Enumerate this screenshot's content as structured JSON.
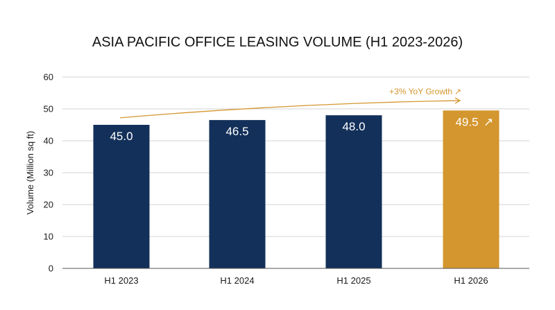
{
  "chart_data": {
    "type": "bar",
    "title": "ASIA PACIFIC OFFICE LEASING VOLUME (H1 2023-2026)",
    "xlabel": "",
    "ylabel": "Volume (Million sq ft)",
    "ylim": [
      0,
      60
    ],
    "yticks": [
      0,
      10,
      20,
      30,
      40,
      50,
      60
    ],
    "grid": true,
    "categories": [
      "H1 2023",
      "H1 2024",
      "H1 2025",
      "H1 2026"
    ],
    "values": [
      45.0,
      46.5,
      48.0,
      49.5
    ],
    "value_labels": [
      "45.0",
      "46.5",
      "48.0",
      "49.5"
    ],
    "highlight_index": 3,
    "highlight_marker": "↗",
    "colors": {
      "bar": "#13305a",
      "highlight": "#d4962e",
      "annotation": "#d4962e",
      "grid": "#d3d3d3",
      "axis": "#555555"
    },
    "annotation": {
      "text": "+3% YoY Growth",
      "arrow_icon": "↗",
      "trend_from": 47.2,
      "trend_to": 52.6
    }
  }
}
